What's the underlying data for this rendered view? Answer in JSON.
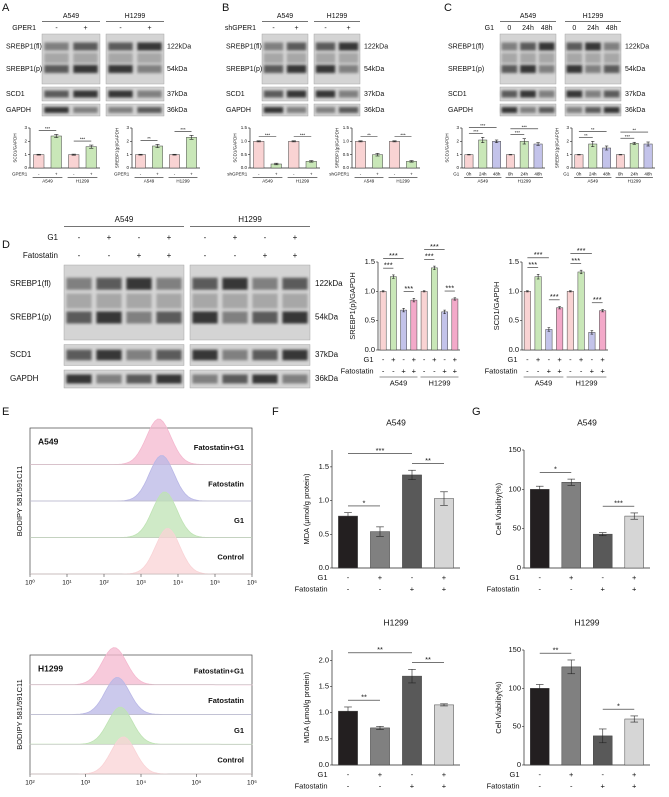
{
  "panel_labels": [
    "A",
    "B",
    "C",
    "D",
    "E",
    "F",
    "G"
  ],
  "blots": [
    {
      "cells": [
        "A549",
        "H1299"
      ],
      "conditions": [
        {
          "name": "GPER1",
          "labels": [
            "-",
            "+",
            "-",
            "+"
          ]
        }
      ],
      "boxes": [
        {
          "names": [
            "SREBP1(fl)",
            "SREBP1(p)"
          ],
          "kda": [
            "122kDa",
            "54kDa"
          ]
        },
        {
          "names": [
            "SCD1"
          ],
          "kda": [
            "37kDa"
          ]
        },
        {
          "names": [
            "GAPDH"
          ],
          "kda": [
            "36kDa"
          ]
        }
      ]
    },
    {
      "cells": [
        "A549",
        "H1299"
      ],
      "conditions": [
        {
          "name": "shGPER1",
          "labels": [
            "-",
            "+",
            "-",
            "+"
          ]
        }
      ],
      "boxes": [
        {
          "names": [
            "SREBP1(fl)",
            "SREBP1(p)"
          ],
          "kda": [
            "122kDa",
            "54kDa"
          ]
        },
        {
          "names": [
            "SCD1"
          ],
          "kda": [
            "37kDa"
          ]
        },
        {
          "names": [
            "GAPDH"
          ],
          "kda": [
            "36kDa"
          ]
        }
      ]
    },
    {
      "cells": [
        "A549",
        "H1299"
      ],
      "conditions": [
        {
          "name": "G1",
          "labels": [
            "0",
            "24h",
            "48h",
            "0",
            "24h",
            "48h"
          ]
        }
      ],
      "boxes": [
        {
          "names": [
            "SREBP1(fl)",
            "SREBP1(p)"
          ],
          "kda": [
            "122kDa",
            "54kDa"
          ]
        },
        {
          "names": [
            "SCD1"
          ],
          "kda": [
            "37kDa"
          ]
        },
        {
          "names": [
            "GAPDH"
          ],
          "kda": [
            "36kDa"
          ]
        }
      ]
    },
    {
      "cells": [
        "A549",
        "H1299"
      ],
      "conditions": [
        {
          "name": "G1",
          "labels": [
            "-",
            "+",
            "-",
            "+",
            "-",
            "+",
            "-",
            "+"
          ]
        },
        {
          "name": "Fatostatin",
          "labels": [
            "-",
            "-",
            "+",
            "+",
            "-",
            "-",
            "+",
            "+"
          ]
        }
      ],
      "boxes": [
        {
          "names": [
            "SREBP1(fl)",
            "SREBP1(p)"
          ],
          "kda": [
            "122kDa",
            "54kDa"
          ]
        },
        {
          "names": [
            "SCD1"
          ],
          "kda": [
            "37kDa"
          ]
        },
        {
          "names": [
            "GAPDH"
          ],
          "kda": [
            "36kDa"
          ]
        }
      ]
    }
  ],
  "flow": [
    {
      "title": "A549",
      "ylabel": "BODIPY 581/591C11",
      "labels": [
        "Fatostatin+G1",
        "Fatostatin",
        "G1",
        "Control"
      ],
      "colors": [
        "#f4b8cf",
        "#b9b7e6",
        "#bfe3b4",
        "#f9d3d6"
      ],
      "log": true,
      "xlim": [
        1,
        1000000
      ],
      "xticks": [
        {
          "value": 1,
          "label": "10⁰"
        },
        {
          "value": 10,
          "label": "10¹"
        },
        {
          "value": 100,
          "label": "10²"
        },
        {
          "value": 1000,
          "label": "10³"
        },
        {
          "value": 10000,
          "label": "10⁴"
        },
        {
          "value": 100000,
          "label": "10⁵"
        },
        {
          "value": 1000000,
          "label": "10⁶"
        }
      ]
    },
    {
      "title": "H1299",
      "ylabel": "BODIPY 581/591C11",
      "labels": [
        "Fatostatin+G1",
        "Fatostatin",
        "G1",
        "Control"
      ],
      "colors": [
        "#f4b8cf",
        "#b9b7e6",
        "#bfe3b4",
        "#f9d3d6"
      ],
      "log": true,
      "xlim": [
        100,
        1000000
      ],
      "xticks": [
        {
          "value": 100,
          "label": "10²"
        },
        {
          "value": 1000,
          "label": "10³"
        },
        {
          "value": 10000,
          "label": "10⁴"
        },
        {
          "value": 100000,
          "label": "10⁵"
        },
        {
          "value": 1000000,
          "label": "10⁶"
        }
      ]
    }
  ],
  "chart_data": [
    {
      "type": "bar",
      "ylabel": "SCD1/GAPDH",
      "conditions": [
        {
          "name": "GPER1",
          "labels": [
            "-",
            "+",
            "-",
            "+"
          ]
        }
      ],
      "groups": [
        "A549",
        "H1299"
      ],
      "values": [
        1.0,
        2.4,
        1.0,
        1.6
      ],
      "errors": [
        0.03,
        0.12,
        0.04,
        0.12
      ],
      "colors": [
        "#f9d3d3",
        "#c9e7b8",
        "#f9d3d3",
        "#c9e7b8"
      ],
      "ylim": [
        0,
        3
      ],
      "yticks": [
        0,
        1,
        2,
        3
      ],
      "significance": [
        {
          "text": "***",
          "from": 0,
          "to": 1
        },
        {
          "text": "***",
          "from": 2,
          "to": 3
        }
      ]
    },
    {
      "type": "bar",
      "ylabel": "SREBP1(p)/GAPDH",
      "conditions": [
        {
          "name": "GPER1",
          "labels": [
            "-",
            "+",
            "-",
            "+"
          ]
        }
      ],
      "groups": [
        "A549",
        "H1299"
      ],
      "values": [
        1.0,
        1.65,
        1.0,
        2.3
      ],
      "errors": [
        0.03,
        0.12,
        0.03,
        0.15
      ],
      "colors": [
        "#f9d3d3",
        "#c9e7b8",
        "#f9d3d3",
        "#c9e7b8"
      ],
      "ylim": [
        0,
        3
      ],
      "yticks": [
        0,
        1,
        2,
        3
      ],
      "significance": [
        {
          "text": "**",
          "from": 0,
          "to": 1
        },
        {
          "text": "***",
          "from": 2,
          "to": 3
        }
      ]
    },
    {
      "type": "bar",
      "ylabel": "SCD1/GAPDH",
      "conditions": [
        {
          "name": "shGPER1",
          "labels": [
            "-",
            "+",
            "-",
            "+"
          ]
        }
      ],
      "groups": [
        "A549",
        "H1299"
      ],
      "values": [
        1.0,
        0.15,
        1.0,
        0.25
      ],
      "errors": [
        0.02,
        0.03,
        0.02,
        0.03
      ],
      "colors": [
        "#f9d3d3",
        "#c9e7b8",
        "#f9d3d3",
        "#c9e7b8"
      ],
      "ylim": [
        0,
        1.5
      ],
      "yticks": [
        {
          "value": 0,
          "label": "0.0"
        },
        {
          "value": 0.5,
          "label": "0.5"
        },
        {
          "value": 1,
          "label": "1.0"
        },
        {
          "value": 1.5,
          "label": "1.5"
        }
      ],
      "significance": [
        {
          "text": "***",
          "from": 0,
          "to": 1
        },
        {
          "text": "***",
          "from": 2,
          "to": 3
        }
      ]
    },
    {
      "type": "bar",
      "ylabel": "SREBP1(p)/GAPDH",
      "conditions": [
        {
          "name": "shGPER1",
          "labels": [
            "-",
            "+",
            "-",
            "+"
          ]
        }
      ],
      "groups": [
        "A549",
        "H1299"
      ],
      "values": [
        1.0,
        0.5,
        1.0,
        0.25
      ],
      "errors": [
        0.02,
        0.05,
        0.02,
        0.03
      ],
      "colors": [
        "#f9d3d3",
        "#c9e7b8",
        "#f9d3d3",
        "#c9e7b8"
      ],
      "ylim": [
        0,
        1.5
      ],
      "yticks": [
        {
          "value": 0,
          "label": "0.0"
        },
        {
          "value": 0.5,
          "label": "0.5"
        },
        {
          "value": 1,
          "label": "1.0"
        },
        {
          "value": 1.5,
          "label": "1.5"
        }
      ],
      "significance": [
        {
          "text": "**",
          "from": 0,
          "to": 1
        },
        {
          "text": "***",
          "from": 2,
          "to": 3
        }
      ]
    },
    {
      "type": "bar",
      "ylabel": "SCD1/GAPDH",
      "conditions": [
        {
          "name": "G1",
          "labels": [
            "0h",
            "24h",
            "48h",
            "0h",
            "24h",
            "48h"
          ]
        }
      ],
      "groups": [
        "A549",
        "H1299"
      ],
      "values": [
        1.0,
        2.1,
        2.0,
        1.0,
        2.0,
        1.8
      ],
      "errors": [
        0.02,
        0.2,
        0.1,
        0.02,
        0.2,
        0.1
      ],
      "colors": [
        "#f9d3d3",
        "#c9e7b8",
        "#c3c3ea",
        "#f9d3d3",
        "#c9e7b8",
        "#c3c3ea"
      ],
      "ylim": [
        0,
        3
      ],
      "yticks": [
        0,
        1,
        2,
        3
      ],
      "significance": [
        {
          "text": "***",
          "from": 0,
          "to": 1
        },
        {
          "text": "***",
          "from": 0,
          "to": 2
        },
        {
          "text": "***",
          "from": 3,
          "to": 4
        },
        {
          "text": "***",
          "from": 3,
          "to": 5
        }
      ]
    },
    {
      "type": "bar",
      "ylabel": "SREBP1(p)/GAPDH",
      "conditions": [
        {
          "name": "G1",
          "labels": [
            "0h",
            "24h",
            "48h",
            "0h",
            "24h",
            "48h"
          ]
        }
      ],
      "groups": [
        "A549",
        "H1299"
      ],
      "values": [
        1.0,
        1.8,
        1.5,
        1.0,
        1.85,
        1.8
      ],
      "errors": [
        0.02,
        0.2,
        0.15,
        0.02,
        0.08,
        0.15
      ],
      "colors": [
        "#f9d3d3",
        "#c9e7b8",
        "#c3c3ea",
        "#f9d3d3",
        "#c9e7b8",
        "#c3c3ea"
      ],
      "ylim": [
        0,
        3
      ],
      "yticks": [
        0,
        1,
        2,
        3
      ],
      "significance": [
        {
          "text": "**",
          "from": 0,
          "to": 1
        },
        {
          "text": "**",
          "from": 0,
          "to": 2
        },
        {
          "text": "***",
          "from": 3,
          "to": 4
        },
        {
          "text": "**",
          "from": 3,
          "to": 5
        }
      ]
    },
    {
      "type": "bar",
      "ylabel": "SREBP1(p)/GAPDH",
      "conditions": [
        {
          "name": "G1",
          "labels": [
            "-",
            "+",
            "-",
            "+",
            "-",
            "+",
            "-",
            "+"
          ]
        },
        {
          "name": "Fatostatin",
          "labels": [
            "-",
            "-",
            "+",
            "+",
            "-",
            "-",
            "+",
            "+"
          ]
        }
      ],
      "groups": [
        "A549",
        "H1299"
      ],
      "values": [
        1.0,
        1.25,
        0.68,
        0.85,
        1.0,
        1.4,
        0.65,
        0.87
      ],
      "errors": [
        0.01,
        0.03,
        0.03,
        0.03,
        0.01,
        0.03,
        0.03,
        0.02
      ],
      "colors": [
        "#f9d3d3",
        "#c9e7b8",
        "#c3c3ea",
        "#f3a9c9",
        "#f9d3d3",
        "#c9e7b8",
        "#c3c3ea",
        "#f3a9c9"
      ],
      "ylim": [
        0,
        1.5
      ],
      "yticks": [
        {
          "value": 0,
          "label": "0.0"
        },
        {
          "value": 0.5,
          "label": "0.5"
        },
        {
          "value": 1,
          "label": "1.0"
        },
        {
          "value": 1.5,
          "label": "1.5"
        }
      ],
      "significance": [
        {
          "text": "***",
          "from": 0,
          "to": 1
        },
        {
          "text": "***",
          "from": 0,
          "to": 2
        },
        {
          "text": "***",
          "from": 2,
          "to": 3
        },
        {
          "text": "***",
          "from": 4,
          "to": 5
        },
        {
          "text": "***",
          "from": 4,
          "to": 6
        },
        {
          "text": "***",
          "from": 6,
          "to": 7
        }
      ]
    },
    {
      "type": "bar",
      "ylabel": "SCD1/GAPDH",
      "conditions": [
        {
          "name": "G1",
          "labels": [
            "-",
            "+",
            "-",
            "+",
            "-",
            "+",
            "-",
            "+"
          ]
        },
        {
          "name": "Fatostatin",
          "labels": [
            "-",
            "-",
            "+",
            "+",
            "-",
            "-",
            "+",
            "+"
          ]
        }
      ],
      "groups": [
        "A549",
        "H1299"
      ],
      "values": [
        1.0,
        1.25,
        0.35,
        0.72,
        1.0,
        1.33,
        0.3,
        0.67
      ],
      "errors": [
        0.01,
        0.04,
        0.03,
        0.02,
        0.01,
        0.03,
        0.03,
        0.02
      ],
      "colors": [
        "#f9d3d3",
        "#c9e7b8",
        "#c3c3ea",
        "#f3a9c9",
        "#f9d3d3",
        "#c9e7b8",
        "#c3c3ea",
        "#f3a9c9"
      ],
      "ylim": [
        0,
        1.5
      ],
      "yticks": [
        {
          "value": 0,
          "label": "0.0"
        },
        {
          "value": 0.5,
          "label": "0.5"
        },
        {
          "value": 1,
          "label": "1.0"
        },
        {
          "value": 1.5,
          "label": "1.5"
        }
      ],
      "significance": [
        {
          "text": "***",
          "from": 0,
          "to": 1
        },
        {
          "text": "***",
          "from": 0,
          "to": 2
        },
        {
          "text": "***",
          "from": 2,
          "to": 3
        },
        {
          "text": "***",
          "from": 4,
          "to": 5
        },
        {
          "text": "***",
          "from": 4,
          "to": 6
        },
        {
          "text": "***",
          "from": 6,
          "to": 7
        }
      ]
    },
    {
      "type": "bar",
      "title": "A549",
      "ylabel": "MDA (μmol/g protein)",
      "conditions": [
        {
          "name": "G1",
          "labels": [
            "-",
            "+",
            "-",
            "+"
          ]
        },
        {
          "name": "Fatostatin",
          "labels": [
            "-",
            "-",
            "+",
            "+"
          ]
        }
      ],
      "values": [
        0.77,
        0.54,
        1.38,
        1.03
      ],
      "errors": [
        0.05,
        0.07,
        0.07,
        0.1
      ],
      "colors": [
        "#231f20",
        "#808080",
        "#595959",
        "#d6d6d6"
      ],
      "ylim": [
        0,
        1.75
      ],
      "yticks": [
        {
          "value": 0,
          "label": "0.0"
        },
        {
          "value": 0.5,
          "label": "0.5"
        },
        {
          "value": 1,
          "label": "1.0"
        },
        {
          "value": 1.5,
          "label": "1.5"
        }
      ],
      "significance": [
        {
          "text": "*",
          "from": 0,
          "to": 1
        },
        {
          "text": "***",
          "from": 0,
          "to": 2
        },
        {
          "text": "**",
          "from": 2,
          "to": 3
        }
      ]
    },
    {
      "type": "bar",
      "title": "H1299",
      "ylabel": "MDA (μmol/g protein)",
      "conditions": [
        {
          "name": "G1",
          "labels": [
            "-",
            "+",
            "-",
            "+"
          ]
        },
        {
          "name": "Fatostatin",
          "labels": [
            "-",
            "-",
            "+",
            "+"
          ]
        }
      ],
      "values": [
        1.03,
        0.71,
        1.7,
        1.15
      ],
      "errors": [
        0.08,
        0.03,
        0.13,
        0.02
      ],
      "colors": [
        "#231f20",
        "#808080",
        "#595959",
        "#d6d6d6"
      ],
      "ylim": [
        0,
        2.2
      ],
      "yticks": [
        {
          "value": 0,
          "label": "0.0"
        },
        {
          "value": 0.5,
          "label": "0.5"
        },
        {
          "value": 1,
          "label": "1.0"
        },
        {
          "value": 1.5,
          "label": "1.5"
        },
        {
          "value": 2,
          "label": "2.0"
        }
      ],
      "significance": [
        {
          "text": "**",
          "from": 0,
          "to": 1
        },
        {
          "text": "**",
          "from": 0,
          "to": 2
        },
        {
          "text": "**",
          "from": 2,
          "to": 3
        }
      ]
    },
    {
      "type": "bar",
      "title": "A549",
      "ylabel": "Cell Viability(%)",
      "conditions": [
        {
          "name": "G1",
          "labels": [
            "-",
            "+",
            "-",
            "+"
          ]
        },
        {
          "name": "Fatostatin",
          "labels": [
            "-",
            "-",
            "+",
            "+"
          ]
        }
      ],
      "values": [
        100,
        109,
        43,
        66
      ],
      "errors": [
        4,
        4,
        2,
        4
      ],
      "colors": [
        "#231f20",
        "#808080",
        "#595959",
        "#d6d6d6"
      ],
      "ylim": [
        0,
        150
      ],
      "yticks": [
        0,
        50,
        100,
        150
      ],
      "significance": [
        {
          "text": "*",
          "from": 0,
          "to": 1
        },
        {
          "text": "***",
          "from": 2,
          "to": 3
        }
      ]
    },
    {
      "type": "bar",
      "title": "H1299",
      "ylabel": "Cell Viability(%)",
      "conditions": [
        {
          "name": "G1",
          "labels": [
            "-",
            "+",
            "-",
            "+"
          ]
        },
        {
          "name": "Fatostatin",
          "labels": [
            "-",
            "-",
            "+",
            "+"
          ]
        }
      ],
      "values": [
        100,
        128,
        38,
        60
      ],
      "errors": [
        5,
        9,
        9,
        4
      ],
      "colors": [
        "#231f20",
        "#808080",
        "#595959",
        "#d6d6d6"
      ],
      "ylim": [
        0,
        150
      ],
      "yticks": [
        0,
        50,
        100,
        150
      ],
      "significance": [
        {
          "text": "**",
          "from": 0,
          "to": 1
        },
        {
          "text": "*",
          "from": 2,
          "to": 3
        }
      ]
    }
  ]
}
